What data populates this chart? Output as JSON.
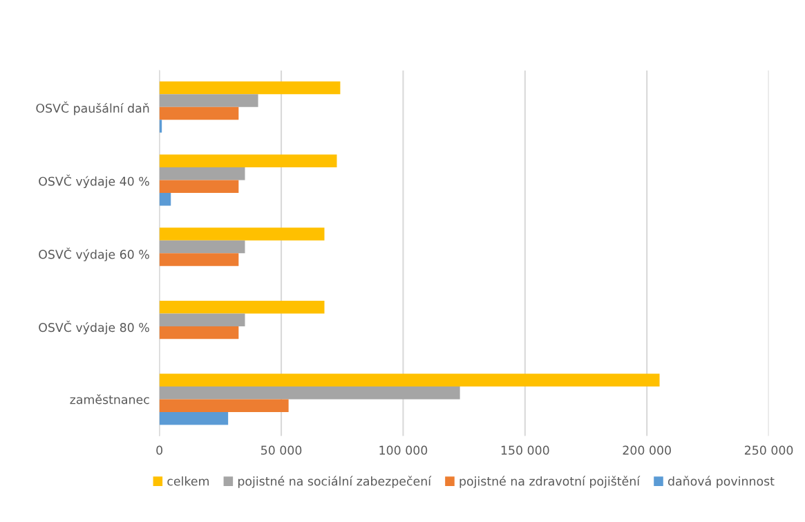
{
  "chart_data": {
    "type": "bar",
    "orientation": "horizontal",
    "categories": [
      "OSVČ paušální daň",
      "OSVČ výdaje 40 %",
      "OSVČ výdaje 60 %",
      "OSVČ výdaje 80 %",
      "zaměstnanec"
    ],
    "series": [
      {
        "name": "celkem",
        "color": "#ffc000",
        "values": [
          74200,
          72800,
          67700,
          67700,
          205200
        ]
      },
      {
        "name": "pojistné na sociální zabezpečení",
        "color": "#a5a5a5",
        "values": [
          40500,
          35100,
          35100,
          35100,
          123300
        ]
      },
      {
        "name": "pojistné na zdravotní pojištění",
        "color": "#ed7d31",
        "values": [
          32500,
          32500,
          32500,
          32500,
          53000
        ]
      },
      {
        "name": "daňová povinnost",
        "color": "#5b9bd5",
        "values": [
          1000,
          4700,
          0,
          0,
          28200
        ]
      }
    ],
    "xlim": [
      0,
      250000
    ],
    "xticks": [
      0,
      {
        "value": 50000,
        "label": "50 000"
      },
      {
        "value": 100000,
        "label": "100 000"
      },
      {
        "value": 150000,
        "label": "150 000"
      },
      {
        "value": 200000,
        "label": "200 000"
      },
      {
        "value": 250000,
        "label": "250 000"
      }
    ],
    "grid": "x",
    "legend": "bottom"
  }
}
